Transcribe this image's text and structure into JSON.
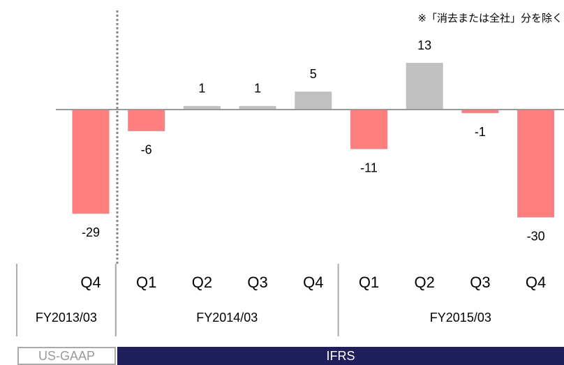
{
  "chart_data": {
    "type": "bar",
    "note": "※「消去または全社」分を除く",
    "categories": [
      "Q4",
      "Q1",
      "Q2",
      "Q3",
      "Q4",
      "Q1",
      "Q2",
      "Q3",
      "Q4"
    ],
    "values": [
      -29,
      -6,
      1,
      1,
      5,
      -11,
      13,
      -1,
      -30
    ],
    "colors": [
      "#ff7f7f",
      "#ff7f7f",
      "#c0c0c0",
      "#c0c0c0",
      "#c0c0c0",
      "#ff7f7f",
      "#c0c0c0",
      "#ff7f7f",
      "#ff7f7f"
    ],
    "groups": [
      {
        "label": "FY2013/03",
        "count": 1
      },
      {
        "label": "FY2014/03",
        "count": 4
      },
      {
        "label": "FY2015/03",
        "count": 4
      }
    ],
    "standards": [
      {
        "label": "US-GAAP",
        "count": 1
      },
      {
        "label": "IFRS",
        "count": 8
      }
    ]
  }
}
